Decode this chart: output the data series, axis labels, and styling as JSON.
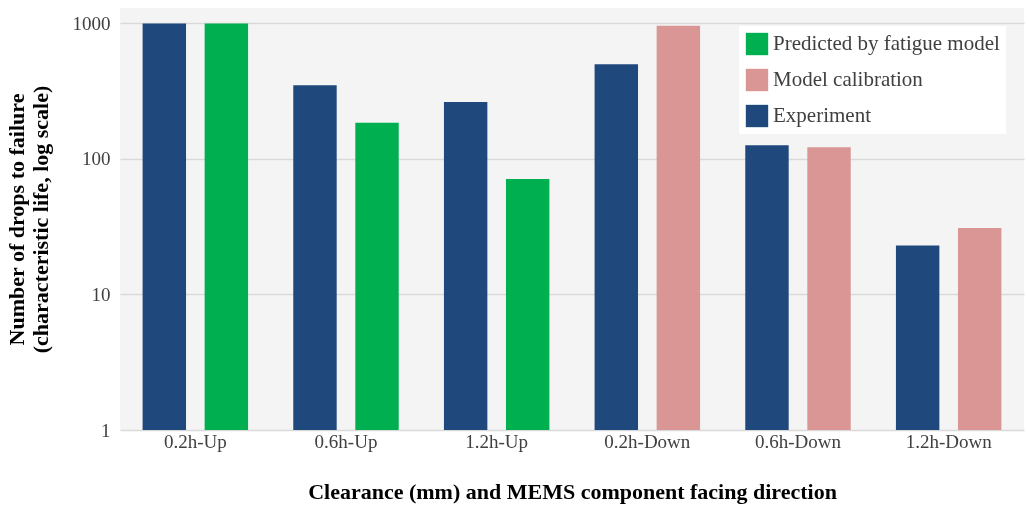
{
  "chart_data": {
    "type": "bar",
    "xlabel": "Clearance (mm) and MEMS component facing direction",
    "ylabel": "Number of drops to failure\n(characteristic life, log scale)",
    "categories": [
      "0.2h-Up",
      "0.6h-Up",
      "1.2h-Up",
      "0.2h-Down",
      "0.6h-Down",
      "1.2h-Down"
    ],
    "series": [
      {
        "name": "Predicted by fatigue model",
        "color": "#00b050",
        "values": [
          1000,
          185,
          71,
          null,
          null,
          null
        ]
      },
      {
        "name": "Model calibration",
        "color": "#d99694",
        "values": [
          null,
          null,
          null,
          960,
          122,
          31
        ]
      },
      {
        "name": "Experiment",
        "color": "#1f497d",
        "values": [
          1000,
          350,
          263,
          500,
          126,
          23
        ]
      }
    ],
    "log": true,
    "ylim": [
      1,
      1300
    ],
    "yticks": [
      1,
      10,
      100,
      1000
    ],
    "grid": "y",
    "legend": "top right"
  }
}
